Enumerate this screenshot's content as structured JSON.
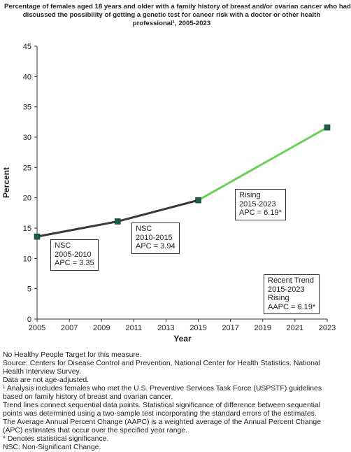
{
  "title_lines": [
    "Percentage of females aged 18 years and older with a family history of breast and/or ovarian cancer  who had",
    "discussed the possibility of getting a genetic test for cancer risk with a doctor or other health",
    "professional¹, 2005-2023"
  ],
  "chart_data": {
    "type": "line",
    "xlabel": "Year",
    "ylabel": "Percent",
    "xlim": [
      2005,
      2023
    ],
    "ylim": [
      0,
      45
    ],
    "x_ticks": [
      "2005",
      "2007",
      "2009",
      "2011",
      "2013",
      "2015",
      "2017",
      "2019",
      "2021",
      "2023"
    ],
    "y_ticks": [
      "0",
      "5",
      "10",
      "15",
      "20",
      "25",
      "30",
      "35",
      "40",
      "45"
    ],
    "grid": false,
    "points": [
      {
        "x": 2005,
        "y": 13.6
      },
      {
        "x": 2010,
        "y": 16.1
      },
      {
        "x": 2015,
        "y": 19.6
      },
      {
        "x": 2023,
        "y": 31.6
      }
    ],
    "segments": [
      {
        "from": 2005,
        "to": 2015,
        "color": "#3a3a3a"
      },
      {
        "from": 2015,
        "to": 2023,
        "color": "#6ccf59"
      }
    ],
    "marker_color": "#1f5a4e",
    "annotations": [
      {
        "lines": [
          "NSC",
          "2005-2010",
          "APC =  3.35"
        ]
      },
      {
        "lines": [
          "NSC",
          "2010-2015",
          "APC =  3.94"
        ]
      },
      {
        "lines": [
          "Rising",
          "2015-2023",
          "APC =  6.19*"
        ]
      },
      {
        "lines": [
          "Recent Trend",
          "2015-2023",
          "Rising",
          "AAPC =  6.19*"
        ]
      }
    ]
  },
  "footnotes": [
    "No Healthy People Target for this measure.",
    "Source: Centers for Disease Control and Prevention, National Center for Health Statistics. National Health Interview Survey.",
    "Data are not age-adjusted.",
    "¹ Analysis includes females who met the U.S. Preventive Services Task Force (USPSTF) guidelines based on family history of breast and ovarian cancer.",
    "Trend lines connect sequential data points. Statistical significance of difference between sequential points was determined using a two-sample test incorporating the standard errors of the estimates.",
    "The Average Annual Percent Change (AAPC) is a weighted average of the Annual Percent Change (APC) estimates that occur over the specified year range.",
    "* Denotes statistical significance.",
    "NSC: Non-Significant Change."
  ]
}
